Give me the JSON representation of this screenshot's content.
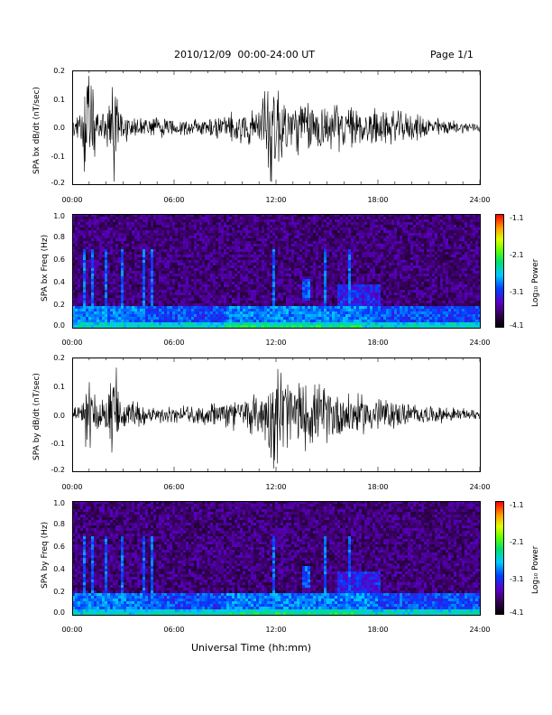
{
  "header": {
    "date_range": "2010/12/09  00:00-24:00 UT",
    "page": "Page 1/1"
  },
  "footer": {
    "xlabel": "Universal Time (hh:mm)"
  },
  "chart_data": [
    {
      "type": "line",
      "ylabel": "SPA bx dB/dt (nT/sec)",
      "xlabel": "",
      "xlim": [
        "00:00",
        "24:00"
      ],
      "ylim": [
        -0.2,
        0.2
      ],
      "x_ticks": [
        "00:00",
        "06:00",
        "12:00",
        "18:00",
        "24:00"
      ],
      "y_ticks": [
        "-0.2",
        "-0.1",
        "0.0",
        "0.1",
        "0.2"
      ],
      "envelope_hours": [
        0,
        0.5,
        0.8,
        1,
        1.5,
        2,
        2.5,
        2.8,
        3,
        4,
        5,
        6,
        7,
        8,
        9,
        10,
        11,
        11.5,
        12,
        12.5,
        13,
        14,
        15,
        16,
        17,
        18,
        19,
        20,
        21,
        22,
        23,
        24
      ],
      "envelope_amplitude": [
        0.03,
        0.05,
        0.2,
        0.2,
        0.06,
        0.06,
        0.2,
        0.07,
        0.06,
        0.04,
        0.04,
        0.03,
        0.03,
        0.04,
        0.05,
        0.06,
        0.08,
        0.2,
        0.2,
        0.12,
        0.1,
        0.1,
        0.09,
        0.08,
        0.07,
        0.07,
        0.06,
        0.05,
        0.04,
        0.03,
        0.02,
        0.02
      ]
    },
    {
      "type": "heatmap",
      "ylabel": "SPA bx Freq (Hz)",
      "xlim": [
        "00:00",
        "24:00"
      ],
      "ylim": [
        0.0,
        1.0
      ],
      "x_ticks": [
        "00:00",
        "06:00",
        "12:00",
        "18:00",
        "24:00"
      ],
      "y_ticks": [
        "0.0",
        "0.2",
        "0.4",
        "0.6",
        "0.8",
        "1.0"
      ],
      "colorbar": {
        "label": "Log₁₀ Power",
        "range": [
          -4.1,
          -1.1
        ],
        "ticks": [
          "-1.1",
          "-2.1",
          "-3.1",
          "-4.1"
        ]
      },
      "features": [
        {
          "hours": [
            13.5,
            14.0
          ],
          "freq_hz": [
            0.25,
            0.45
          ],
          "log_power": -2.8
        },
        {
          "hours": [
            15.5,
            18.0
          ],
          "freq_hz": [
            0.15,
            0.4
          ],
          "log_power": -3.0
        },
        {
          "hours": [
            0,
            24
          ],
          "freq_hz": [
            0.0,
            0.05
          ],
          "log_power": -2.4
        }
      ]
    },
    {
      "type": "line",
      "ylabel": "SPA by dB/dt (nT/sec)",
      "xlabel": "",
      "xlim": [
        "00:00",
        "24:00"
      ],
      "ylim": [
        -0.2,
        0.2
      ],
      "x_ticks": [
        "00:00",
        "06:00",
        "12:00",
        "18:00",
        "24:00"
      ],
      "y_ticks": [
        "-0.2",
        "-0.1",
        "0.0",
        "0.1",
        "0.2"
      ],
      "envelope_hours": [
        0,
        0.5,
        0.8,
        1,
        1.5,
        2,
        2.5,
        2.8,
        3,
        4,
        5,
        6,
        7,
        8,
        9,
        10,
        11,
        11.5,
        12,
        12.5,
        13,
        14,
        15,
        16,
        17,
        18,
        19,
        20,
        21,
        22,
        23,
        24
      ],
      "envelope_amplitude": [
        0.02,
        0.04,
        0.2,
        0.12,
        0.06,
        0.06,
        0.2,
        0.08,
        0.06,
        0.04,
        0.03,
        0.03,
        0.03,
        0.04,
        0.05,
        0.06,
        0.08,
        0.12,
        0.2,
        0.18,
        0.12,
        0.12,
        0.1,
        0.09,
        0.07,
        0.07,
        0.05,
        0.04,
        0.03,
        0.03,
        0.02,
        0.02
      ]
    },
    {
      "type": "heatmap",
      "ylabel": "SPA by Freq (Hz)",
      "xlim": [
        "00:00",
        "24:00"
      ],
      "ylim": [
        0.0,
        1.0
      ],
      "x_ticks": [
        "00:00",
        "06:00",
        "12:00",
        "18:00",
        "24:00"
      ],
      "y_ticks": [
        "0.0",
        "0.2",
        "0.4",
        "0.6",
        "0.8",
        "1.0"
      ],
      "colorbar": {
        "label": "Log₁₀ Power",
        "range": [
          -4.1,
          -1.1
        ],
        "ticks": [
          "-1.1",
          "-2.1",
          "-3.1",
          "-4.1"
        ]
      },
      "features": [
        {
          "hours": [
            13.5,
            14.0
          ],
          "freq_hz": [
            0.25,
            0.45
          ],
          "log_power": -2.8
        },
        {
          "hours": [
            15.5,
            18.0
          ],
          "freq_hz": [
            0.15,
            0.4
          ],
          "log_power": -3.0
        },
        {
          "hours": [
            0,
            24
          ],
          "freq_hz": [
            0.0,
            0.05
          ],
          "log_power": -2.4
        }
      ]
    }
  ]
}
